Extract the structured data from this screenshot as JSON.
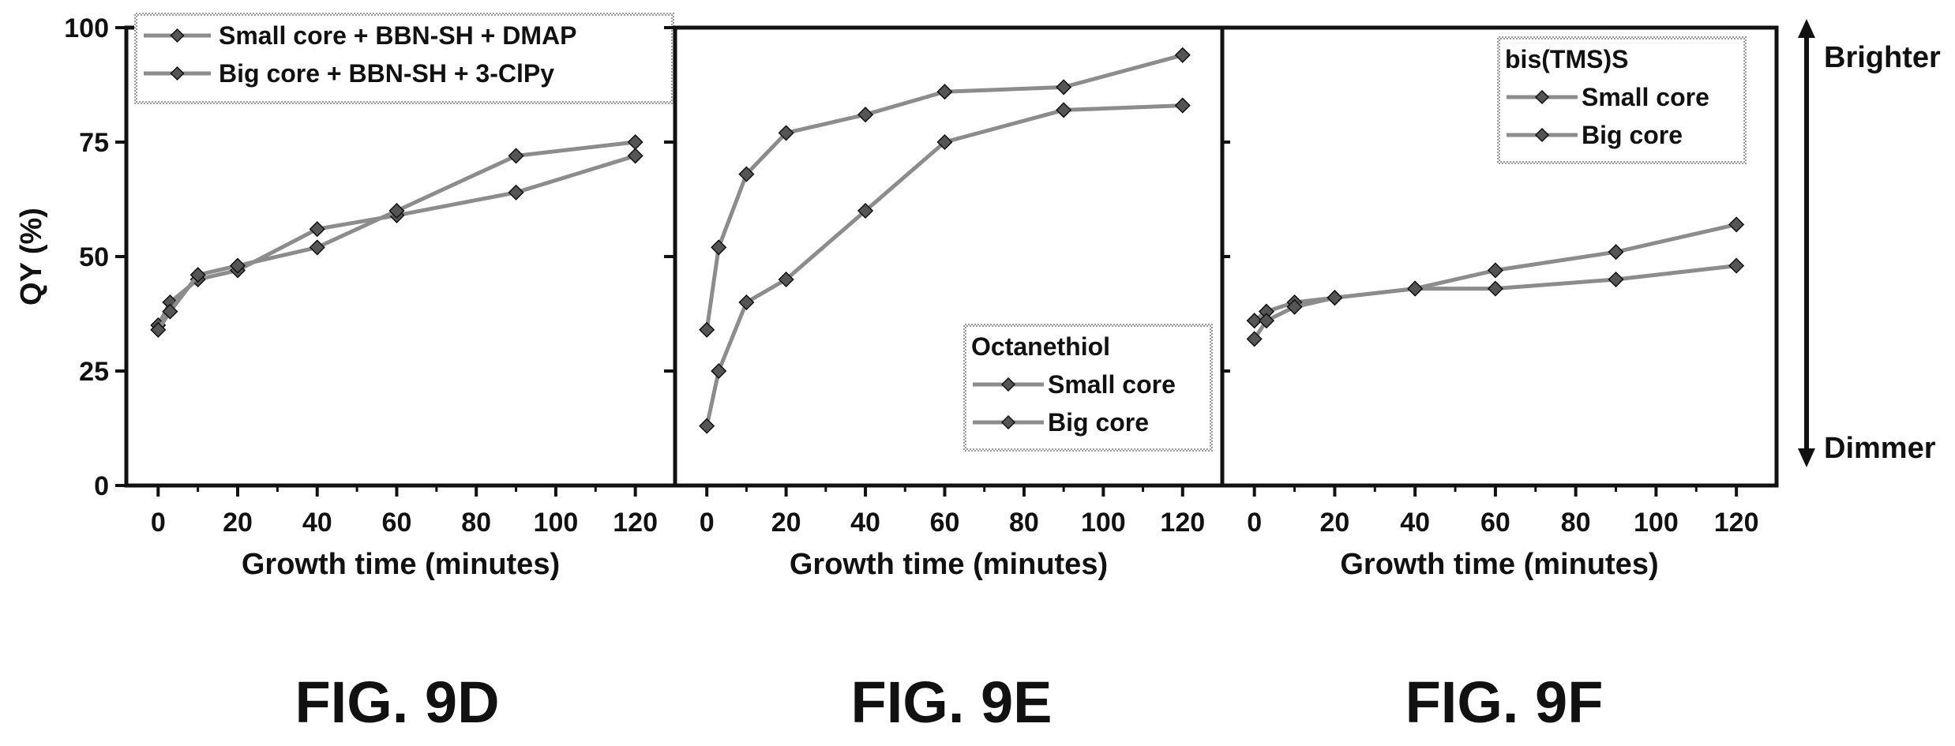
{
  "colors": {
    "ink": "#111111",
    "series_line": "#8c8c8c",
    "marker": "#555555"
  },
  "chart_data": [
    {
      "type": "line",
      "caption": "FIG. 9D",
      "xlabel": "Growth time (minutes)",
      "ylabel": "QY (%)",
      "xlim": [
        -8,
        130
      ],
      "ylim": [
        0,
        100
      ],
      "xticks": [
        0,
        20,
        40,
        60,
        80,
        100,
        120
      ],
      "yticks": [
        0,
        25,
        50,
        75,
        100
      ],
      "legend": {
        "placement": "top",
        "title": ""
      },
      "series": [
        {
          "name": "Small core + BBN-SH + DMAP",
          "x": [
            0,
            3,
            10,
            20,
            40,
            60,
            90,
            120
          ],
          "y": [
            35,
            40,
            45,
            47,
            56,
            59,
            64,
            72
          ]
        },
        {
          "name": "Big core + BBN-SH + 3-ClPy",
          "x": [
            0,
            3,
            10,
            20,
            40,
            60,
            90,
            120
          ],
          "y": [
            34,
            38,
            46,
            48,
            52,
            60,
            72,
            75
          ]
        }
      ]
    },
    {
      "type": "line",
      "caption": "FIG. 9E",
      "xlabel": "Growth time (minutes)",
      "ylabel": "",
      "xlim": [
        -8,
        130
      ],
      "ylim": [
        0,
        100
      ],
      "xticks": [
        0,
        20,
        40,
        60,
        80,
        100,
        120
      ],
      "yticks": [
        0,
        25,
        50,
        75,
        100
      ],
      "legend": {
        "placement": "bottom-right",
        "title": "Octanethiol"
      },
      "series": [
        {
          "name": "Small core",
          "x": [
            0,
            3,
            10,
            20,
            40,
            60,
            90,
            120
          ],
          "y": [
            34,
            52,
            68,
            77,
            81,
            86,
            87,
            94
          ]
        },
        {
          "name": "Big core",
          "x": [
            0,
            3,
            10,
            20,
            40,
            60,
            90,
            120
          ],
          "y": [
            13,
            25,
            40,
            45,
            60,
            75,
            82,
            83
          ]
        }
      ]
    },
    {
      "type": "line",
      "caption": "FIG. 9F",
      "xlabel": "Growth time (minutes)",
      "ylabel": "",
      "xlim": [
        -8,
        130
      ],
      "ylim": [
        0,
        100
      ],
      "xticks": [
        0,
        20,
        40,
        60,
        80,
        100,
        120
      ],
      "yticks": [],
      "legend": {
        "placement": "top-right",
        "title": "bis(TMS)S"
      },
      "series": [
        {
          "name": "Small core",
          "x": [
            0,
            3,
            10,
            20,
            40,
            60,
            90,
            120
          ],
          "y": [
            36,
            38,
            40,
            41,
            43,
            43,
            45,
            48
          ]
        },
        {
          "name": "Big core",
          "x": [
            0,
            3,
            10,
            20,
            40,
            60,
            90,
            120
          ],
          "y": [
            32,
            36,
            39,
            41,
            43,
            47,
            51,
            57
          ]
        }
      ],
      "side_scale": {
        "top_label": "Brighter",
        "bottom_label": "Dimmer"
      }
    }
  ]
}
